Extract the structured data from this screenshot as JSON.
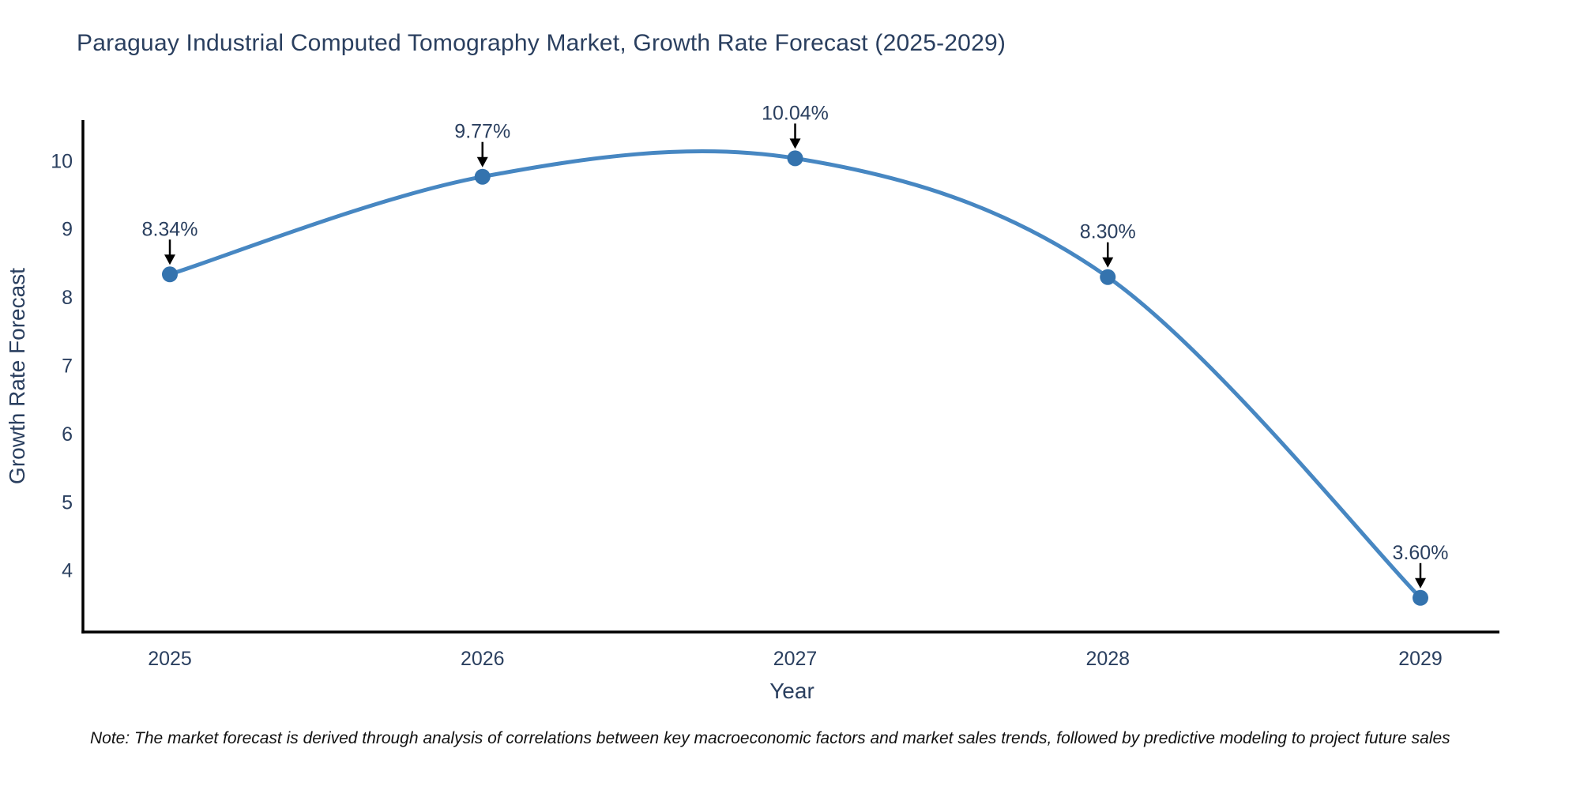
{
  "page": {
    "background": "#ffffff",
    "footnote": "Note: The market forecast is derived through analysis of correlations between key macroeconomic factors and market sales trends, followed by predictive modeling to project future sales"
  },
  "chart_data": {
    "type": "line",
    "line_shape": "spline",
    "title": "Paraguay Industrial Computed Tomography Market, Growth Rate Forecast (2025-2029)",
    "xlabel": "Year",
    "ylabel": "Growth Rate Forecast",
    "categories": [
      "2025",
      "2026",
      "2027",
      "2028",
      "2029"
    ],
    "values": [
      8.34,
      9.77,
      10.04,
      8.3,
      3.6
    ],
    "point_labels": [
      "8.34%",
      "9.77%",
      "10.04%",
      "8.30%",
      "3.60%"
    ],
    "yticks": [
      4,
      5,
      6,
      7,
      8,
      9,
      10
    ],
    "ylim": [
      3.1,
      10.6
    ],
    "grid": false,
    "legend": "none",
    "markers": true,
    "annotation_arrows": true,
    "colors": {
      "line": "#4787c2",
      "marker": "#3473ae",
      "text": "#2a3f5f",
      "axis": "#000000",
      "arrow": "#000000",
      "note": "#111111"
    }
  }
}
